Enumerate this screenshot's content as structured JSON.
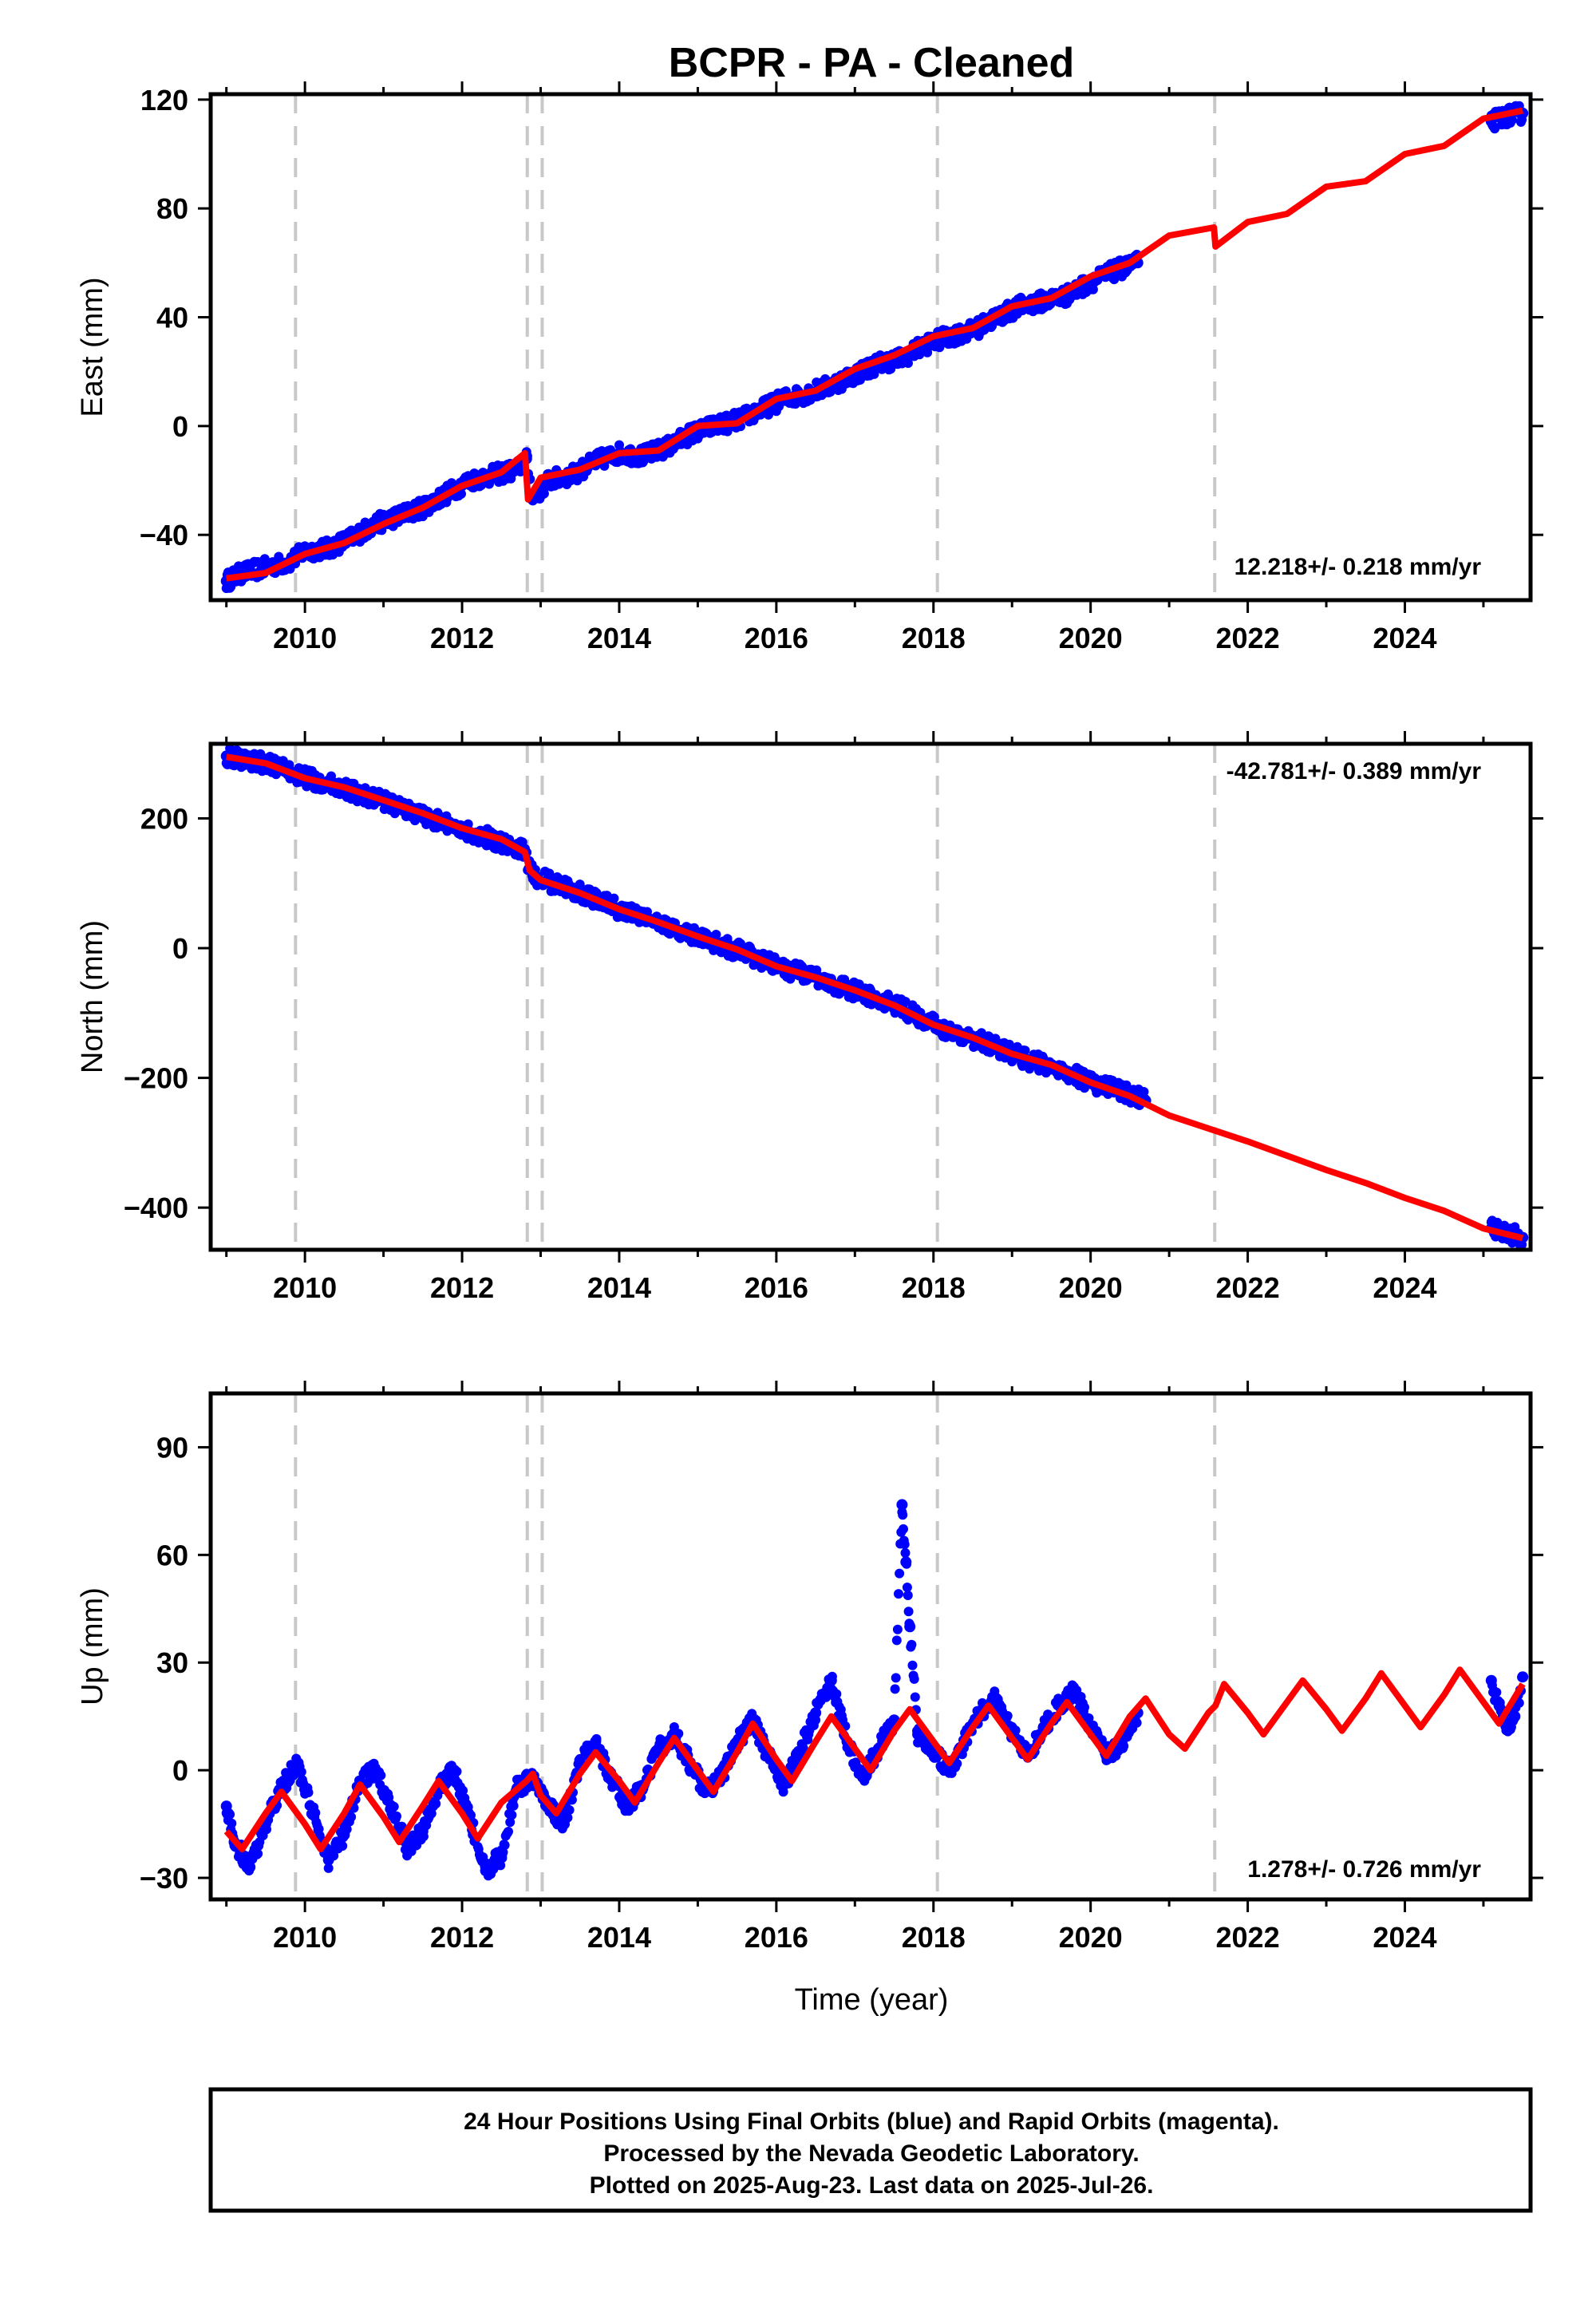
{
  "chart_data": {
    "type": "scatter",
    "title": "BCPR  - PA - Cleaned",
    "xlabel": "Time (year)",
    "xlim": [
      2008.8,
      2025.6
    ],
    "xticks": [
      2010,
      2012,
      2014,
      2016,
      2018,
      2020,
      2022,
      2024
    ],
    "offset_lines": [
      2009.88,
      2012.83,
      2013.02,
      2018.05,
      2021.58
    ],
    "colors": {
      "observed": "#0000ff",
      "model": "#ff0000",
      "offsets": "#c8c8c8"
    },
    "panels": [
      {
        "name": "East",
        "ylabel": "East (mm)",
        "ylim": [
          -64,
          122
        ],
        "yticks": [
          -40,
          0,
          40,
          80,
          120
        ],
        "rate_text": "12.218+/- 0.218 mm/yr",
        "model": {
          "x": [
            2009.0,
            2009.5,
            2010.0,
            2010.5,
            2011.0,
            2011.5,
            2012.0,
            2012.5,
            2012.8,
            2012.84,
            2013.0,
            2013.5,
            2014.0,
            2014.5,
            2015.0,
            2015.5,
            2016.0,
            2016.5,
            2017.0,
            2017.5,
            2018.0,
            2018.5,
            2019.0,
            2019.5,
            2020.0,
            2020.5,
            2021.0,
            2021.57,
            2021.59,
            2022.0,
            2022.5,
            2023.0,
            2023.5,
            2024.0,
            2024.5,
            2025.0,
            2025.5
          ],
          "y": [
            -56,
            -54,
            -47,
            -43,
            -36,
            -30,
            -22,
            -17,
            -10,
            -27,
            -19,
            -16,
            -10,
            -9,
            0,
            1,
            10,
            13,
            21,
            26,
            33,
            36,
            44,
            47,
            55,
            60,
            70,
            73,
            66,
            75,
            78,
            88,
            90,
            100,
            103,
            113,
            116
          ]
        },
        "observed": {
          "x": [
            2009.0,
            2009.2,
            2009.5,
            2009.8,
            2010.0,
            2010.3,
            2010.6,
            2010.9,
            2011.2,
            2011.5,
            2011.8,
            2012.1,
            2012.4,
            2012.7,
            2012.82,
            2012.9,
            2013.1,
            2013.4,
            2013.7,
            2014.0,
            2014.3,
            2014.6,
            2014.9,
            2015.2,
            2015.5,
            2015.8,
            2016.1,
            2016.4,
            2016.7,
            2017.0,
            2017.3,
            2017.6,
            2017.9,
            2018.2,
            2018.5,
            2018.8,
            2019.1,
            2019.4,
            2019.7,
            2020.0,
            2020.3,
            2020.6,
            2025.1,
            2025.3,
            2025.5
          ],
          "y": [
            -57,
            -54,
            -52,
            -50,
            -46,
            -45,
            -41,
            -36,
            -33,
            -30,
            -25,
            -20,
            -18,
            -16,
            -12,
            -27,
            -20,
            -18,
            -13,
            -10,
            -11,
            -8,
            -3,
            0,
            2,
            6,
            10,
            12,
            15,
            19,
            23,
            25,
            30,
            33,
            35,
            40,
            44,
            46,
            48,
            53,
            57,
            60,
            112,
            114,
            115
          ]
        }
      },
      {
        "name": "North",
        "ylabel": "North (mm)",
        "ylim": [
          -465,
          315
        ],
        "yticks": [
          -400,
          -200,
          0,
          200
        ],
        "rate_text": "-42.781+/- 0.389 mm/yr",
        "model": {
          "x": [
            2009.0,
            2009.5,
            2010.0,
            2010.5,
            2011.0,
            2011.5,
            2012.0,
            2012.5,
            2012.8,
            2012.86,
            2013.0,
            2013.5,
            2014.0,
            2014.5,
            2015.0,
            2015.5,
            2016.0,
            2016.5,
            2017.0,
            2017.5,
            2018.0,
            2018.5,
            2019.0,
            2019.5,
            2020.0,
            2020.5,
            2021.0,
            2021.5,
            2022.0,
            2022.5,
            2023.0,
            2023.5,
            2024.0,
            2024.5,
            2025.0,
            2025.5
          ],
          "y": [
            295,
            285,
            262,
            248,
            228,
            208,
            185,
            168,
            148,
            120,
            105,
            85,
            60,
            40,
            18,
            -2,
            -28,
            -45,
            -65,
            -88,
            -118,
            -138,
            -163,
            -180,
            -207,
            -228,
            -258,
            -278,
            -298,
            -320,
            -342,
            -362,
            -385,
            -405,
            -432,
            -447
          ]
        },
        "observed": {
          "x": [
            2009.0,
            2009.3,
            2009.6,
            2010.0,
            2010.4,
            2010.8,
            2011.2,
            2011.6,
            2012.0,
            2012.4,
            2012.78,
            2012.9,
            2013.2,
            2013.6,
            2014.0,
            2014.4,
            2014.8,
            2015.2,
            2015.6,
            2016.0,
            2016.4,
            2016.8,
            2017.2,
            2017.6,
            2018.0,
            2018.4,
            2018.8,
            2019.2,
            2019.6,
            2020.0,
            2020.4,
            2020.7,
            2025.1,
            2025.3,
            2025.5
          ],
          "y": [
            296,
            290,
            282,
            263,
            250,
            234,
            218,
            200,
            184,
            168,
            150,
            112,
            98,
            82,
            60,
            44,
            25,
            10,
            -8,
            -28,
            -42,
            -58,
            -75,
            -92,
            -118,
            -135,
            -152,
            -172,
            -186,
            -207,
            -222,
            -235,
            -432,
            -440,
            -446
          ]
        }
      },
      {
        "name": "Up",
        "ylabel": "Up (mm)",
        "ylim": [
          -36,
          105
        ],
        "yticks": [
          -30,
          0,
          30,
          60,
          90
        ],
        "rate_text": "1.278+/- 0.726 mm/yr",
        "model": {
          "x": [
            2009.0,
            2009.2,
            2009.5,
            2009.7,
            2010.0,
            2010.2,
            2010.5,
            2010.7,
            2011.0,
            2011.2,
            2011.5,
            2011.7,
            2012.0,
            2012.2,
            2012.5,
            2012.82,
            2012.9,
            2013.0,
            2013.2,
            2013.5,
            2013.7,
            2014.0,
            2014.2,
            2014.5,
            2014.7,
            2015.0,
            2015.2,
            2015.5,
            2015.7,
            2016.0,
            2016.2,
            2016.5,
            2016.7,
            2017.0,
            2017.2,
            2017.5,
            2017.7,
            2018.0,
            2018.2,
            2018.5,
            2018.7,
            2019.0,
            2019.2,
            2019.5,
            2019.7,
            2020.0,
            2020.2,
            2020.5,
            2020.7,
            2021.0,
            2021.2,
            2021.5,
            2021.59,
            2021.7,
            2022.0,
            2022.2,
            2022.5,
            2022.7,
            2023.0,
            2023.2,
            2023.5,
            2023.7,
            2024.0,
            2024.2,
            2024.5,
            2024.7,
            2025.0,
            2025.2,
            2025.5
          ],
          "y": [
            -17,
            -22,
            -12,
            -6,
            -15,
            -22,
            -12,
            -4,
            -13,
            -20,
            -10,
            -3,
            -12,
            -19,
            -9,
            -3,
            -1,
            -7,
            -12,
            -1,
            5,
            -3,
            -9,
            2,
            9,
            0,
            -6,
            5,
            13,
            3,
            -3,
            8,
            15,
            6,
            0,
            11,
            17,
            8,
            2,
            12,
            18,
            9,
            3,
            13,
            19,
            10,
            4,
            15,
            20,
            10,
            6,
            16,
            18,
            24,
            16,
            10,
            19,
            25,
            17,
            11,
            20,
            27,
            18,
            12,
            21,
            28,
            19,
            13,
            24
          ]
        },
        "observed": {
          "x": [
            2009.0,
            2009.1,
            2009.3,
            2009.5,
            2009.7,
            2009.9,
            2010.1,
            2010.3,
            2010.5,
            2010.7,
            2010.9,
            2011.1,
            2011.3,
            2011.5,
            2011.7,
            2011.9,
            2012.1,
            2012.3,
            2012.5,
            2012.7,
            2012.9,
            2013.1,
            2013.3,
            2013.5,
            2013.7,
            2013.9,
            2014.1,
            2014.3,
            2014.5,
            2014.7,
            2014.9,
            2015.1,
            2015.3,
            2015.5,
            2015.7,
            2015.9,
            2016.1,
            2016.3,
            2016.5,
            2016.7,
            2016.9,
            2017.1,
            2017.3,
            2017.5,
            2017.6,
            2017.65,
            2017.7,
            2017.8,
            2018.0,
            2018.2,
            2018.4,
            2018.6,
            2018.8,
            2019.0,
            2019.2,
            2019.4,
            2019.6,
            2019.8,
            2020.0,
            2020.2,
            2020.4,
            2020.6,
            2025.1,
            2025.2,
            2025.3,
            2025.4,
            2025.5
          ],
          "y": [
            -10,
            -20,
            -27,
            -15,
            -5,
            2,
            -12,
            -25,
            -18,
            -3,
            0,
            -10,
            -22,
            -17,
            -5,
            0,
            -14,
            -28,
            -24,
            -5,
            -2,
            -10,
            -15,
            2,
            8,
            -2,
            -10,
            -5,
            6,
            10,
            2,
            -6,
            -2,
            8,
            14,
            4,
            -4,
            5,
            16,
            25,
            8,
            -2,
            6,
            14,
            74,
            58,
            40,
            10,
            6,
            0,
            8,
            16,
            20,
            10,
            4,
            12,
            18,
            22,
            12,
            4,
            8,
            16,
            25,
            18,
            12,
            15,
            26
          ]
        }
      }
    ],
    "footer": [
      "24 Hour Positions Using Final Orbits (blue) and Rapid Orbits (magenta).",
      "Processed by the Nevada Geodetic Laboratory.",
      "Plotted on 2025-Aug-23. Last data on 2025-Jul-26."
    ]
  }
}
